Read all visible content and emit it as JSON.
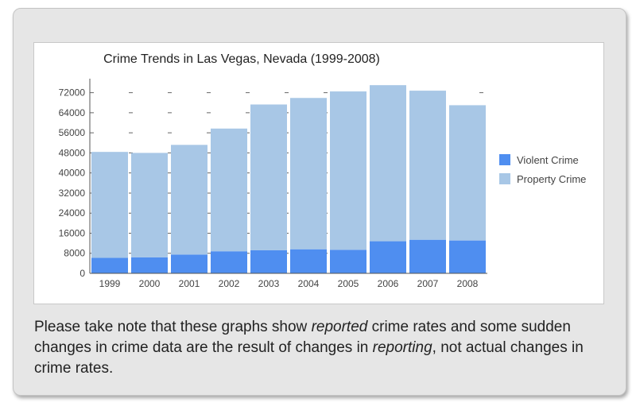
{
  "colors": {
    "violent": "#4f8ef0",
    "property": "#a8c7e6",
    "axis": "#555555",
    "text": "#222222"
  },
  "chart_data": {
    "type": "bar",
    "stacked": true,
    "title": "Crime Trends in Las Vegas, Nevada (1999-2008)",
    "xlabel": "",
    "ylabel": "",
    "categories": [
      "1999",
      "2000",
      "2001",
      "2002",
      "2003",
      "2004",
      "2005",
      "2006",
      "2007",
      "2008"
    ],
    "series": [
      {
        "name": "Violent Crime",
        "values": [
          6200,
          6400,
          7500,
          8800,
          9200,
          9600,
          9400,
          12800,
          13400,
          13100
        ]
      },
      {
        "name": "Property Crime",
        "values": [
          42200,
          41600,
          43700,
          48900,
          58100,
          60300,
          63100,
          62200,
          59400,
          53900
        ]
      }
    ],
    "yticks": [
      0,
      8000,
      16000,
      24000,
      32000,
      40000,
      48000,
      56000,
      64000,
      72000
    ],
    "ylim": [
      0,
      72000
    ],
    "grid": "dashed",
    "legend_position": "right"
  },
  "note": {
    "p1": "Please take note that these graphs show ",
    "em1": "reported",
    "p2": " crime rates and some sudden changes in crime data are the result of changes in ",
    "em2": "reporting",
    "p3": ", not actual changes in crime rates."
  }
}
